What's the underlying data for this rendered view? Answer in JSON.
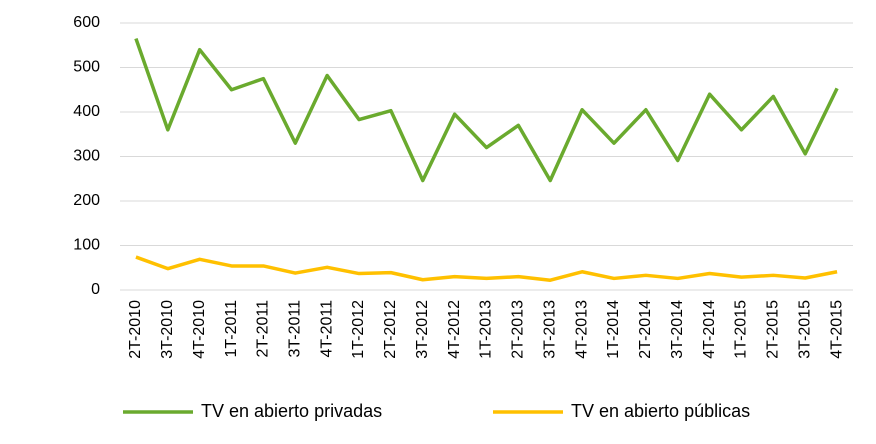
{
  "chart_data": {
    "type": "line",
    "categories": [
      "2T-2010",
      "3T-2010",
      "4T-2010",
      "1T-2011",
      "2T-2011",
      "3T-2011",
      "4T-2011",
      "1T-2012",
      "2T-2012",
      "3T-2012",
      "4T-2012",
      "1T-2013",
      "2T-2013",
      "3T-2013",
      "4T-2013",
      "1T-2014",
      "2T-2014",
      "3T-2014",
      "4T-2014",
      "1T-2015",
      "2T-2015",
      "3T-2015",
      "4T-2015"
    ],
    "series": [
      {
        "name": "TV en abierto privadas",
        "color": "#6aaa2e",
        "values": [
          565,
          360,
          540,
          450,
          475,
          330,
          482,
          383,
          403,
          246,
          395,
          320,
          370,
          246,
          405,
          330,
          405,
          291,
          440,
          360,
          435,
          306,
          453
        ]
      },
      {
        "name": "TV en abierto públicas",
        "color": "#ffc000",
        "values": [
          74,
          48,
          69,
          54,
          54,
          38,
          51,
          37,
          39,
          23,
          30,
          26,
          30,
          22,
          41,
          26,
          33,
          26,
          37,
          29,
          33,
          27,
          41
        ]
      }
    ],
    "ylim": [
      0,
      600
    ],
    "yticks": [
      0,
      100,
      200,
      300,
      400,
      500,
      600
    ],
    "grid": true,
    "legend": "bottom"
  }
}
